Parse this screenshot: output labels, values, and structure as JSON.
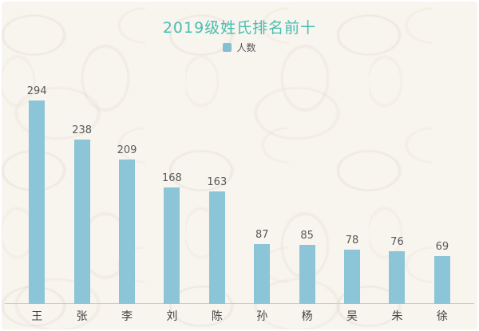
{
  "page": {
    "background_color": "#f8f4ee",
    "border_color": "#ffffff"
  },
  "chart": {
    "title": "2019级姓氏排名前十",
    "title_color": "#47bdb1",
    "legend_label": "人数",
    "legend_marker_color": "#84bfd2",
    "bar_color": "#8dc5d8",
    "axis_line_color": "#cccccc",
    "value_label_color": "#595959",
    "category_label_color": "#434343"
  },
  "chart_data": {
    "type": "bar",
    "title": "2019级姓氏排名前十",
    "categories": [
      "王",
      "张",
      "李",
      "刘",
      "陈",
      "孙",
      "杨",
      "吴",
      "朱",
      "徐"
    ],
    "series": [
      {
        "name": "人数",
        "values": [
          294,
          238,
          209,
          168,
          163,
          87,
          85,
          78,
          76,
          69
        ]
      }
    ],
    "values": [
      294,
      238,
      209,
      168,
      163,
      87,
      85,
      78,
      76,
      69
    ],
    "data_labels": [
      "294",
      "238",
      "209",
      "168",
      "163",
      "87",
      "85",
      "78",
      "76",
      "69"
    ],
    "xlabel": "",
    "ylabel": "",
    "ylim": [
      0,
      300
    ],
    "grid": false,
    "y_axis_visible": false,
    "legend_position": "top-center"
  }
}
